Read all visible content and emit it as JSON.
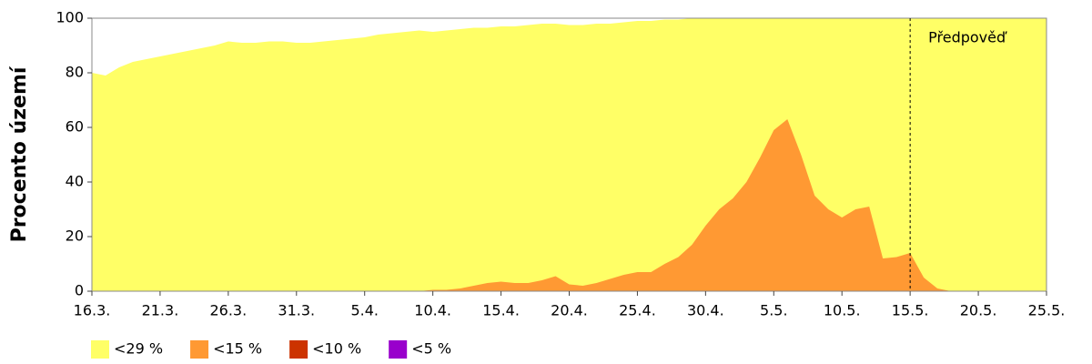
{
  "chart_data": {
    "type": "area",
    "y_label": "Procento území",
    "categories": [
      "16.3.",
      null,
      null,
      null,
      null,
      "21.3.",
      null,
      null,
      null,
      null,
      "26.3.",
      null,
      null,
      null,
      null,
      "31.3.",
      null,
      null,
      null,
      null,
      "5.4.",
      null,
      null,
      null,
      null,
      "10.4.",
      null,
      null,
      null,
      null,
      "15.4.",
      null,
      null,
      null,
      null,
      "20.4.",
      null,
      null,
      null,
      null,
      "25.4.",
      null,
      null,
      null,
      null,
      "30.4.",
      null,
      null,
      null,
      null,
      "5.5.",
      null,
      null,
      null,
      null,
      "10.5.",
      null,
      null,
      null,
      null,
      "15.5.",
      null,
      null,
      null,
      null,
      "20.5.",
      null,
      null,
      null,
      null,
      "25.5."
    ],
    "series": [
      {
        "name": "<29 %",
        "color": "#ffff66",
        "values": [
          80,
          79,
          82,
          84,
          85,
          86,
          87,
          88,
          89,
          90,
          91.5,
          91,
          91,
          91.5,
          91.5,
          91,
          91,
          91.5,
          92,
          92.5,
          93,
          94,
          94.5,
          95,
          95.5,
          95,
          95.5,
          96,
          96.5,
          96.5,
          97,
          97,
          97.5,
          98,
          98,
          97.5,
          97.5,
          98,
          98,
          98.5,
          99,
          99,
          99.5,
          99.5,
          100,
          100,
          100,
          100,
          100,
          100,
          100,
          100,
          100,
          100,
          100,
          100,
          100,
          100,
          100,
          100,
          100,
          100,
          100,
          100,
          100,
          100,
          100,
          100,
          100,
          100,
          100
        ]
      },
      {
        "name": "<15 %",
        "color": "#ff9933",
        "values": [
          0,
          0,
          0,
          0,
          0,
          0,
          0,
          0,
          0,
          0,
          0,
          0,
          0,
          0,
          0,
          0,
          0,
          0,
          0,
          0,
          0,
          0,
          0,
          0,
          0,
          0.5,
          0.5,
          1,
          2,
          3,
          3.5,
          3,
          3,
          4,
          5.5,
          2.5,
          2,
          3,
          4.5,
          6,
          7,
          7,
          10,
          12.5,
          17,
          24,
          30,
          34,
          40,
          49,
          59,
          63,
          50,
          35,
          30,
          27,
          30,
          31,
          12,
          12.5,
          14,
          5,
          1,
          0,
          0,
          0,
          0,
          0,
          0,
          0,
          0
        ]
      },
      {
        "name": "<10 %",
        "color": "#cc3300",
        "values": [
          0,
          0,
          0,
          0,
          0,
          0,
          0,
          0,
          0,
          0,
          0,
          0,
          0,
          0,
          0,
          0,
          0,
          0,
          0,
          0,
          0,
          0,
          0,
          0,
          0,
          0,
          0,
          0,
          0,
          0,
          0,
          0,
          0,
          0,
          0,
          0,
          0,
          0,
          0,
          0,
          0,
          0,
          0,
          0,
          0,
          0,
          0,
          0,
          0,
          0,
          0,
          0,
          0,
          0,
          0,
          0,
          0,
          0,
          0,
          0,
          0,
          0,
          0,
          0,
          0,
          0,
          0,
          0,
          0,
          0,
          0
        ]
      },
      {
        "name": "<5 %",
        "color": "#9900cc",
        "values": [
          0,
          0,
          0,
          0,
          0,
          0,
          0,
          0,
          0,
          0,
          0,
          0,
          0,
          0,
          0,
          0,
          0,
          0,
          0,
          0,
          0,
          0,
          0,
          0,
          0,
          0,
          0,
          0,
          0,
          0,
          0,
          0,
          0,
          0,
          0,
          0,
          0,
          0,
          0,
          0,
          0,
          0,
          0,
          0,
          0,
          0,
          0,
          0,
          0,
          0,
          0,
          0,
          0,
          0,
          0,
          0,
          0,
          0,
          0,
          0,
          0,
          0,
          0,
          0,
          0,
          0,
          0,
          0,
          0,
          0,
          0
        ]
      }
    ],
    "annotations": [
      {
        "text": "Předpověď",
        "x": "15.5."
      }
    ],
    "ylim": [
      0,
      100
    ],
    "yticks": [
      0,
      20,
      40,
      60,
      80,
      100
    ],
    "legend": "bottom-left"
  }
}
